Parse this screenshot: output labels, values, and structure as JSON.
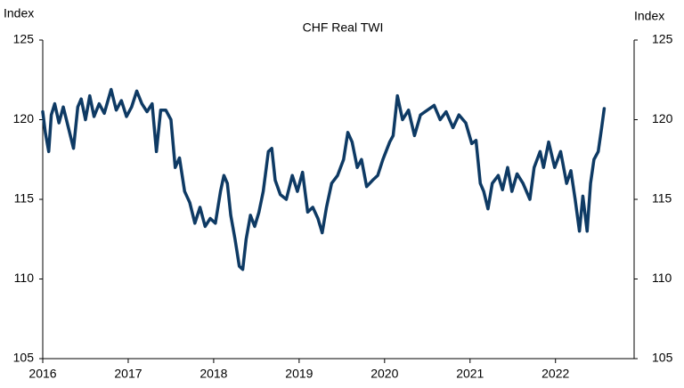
{
  "chart_data": {
    "type": "line",
    "title": "CHF Real TWI",
    "ylabel": "Index",
    "y2label": "Index",
    "color": "#0e3a64",
    "x": [
      2016.0,
      2016.03,
      2016.07,
      2016.1,
      2016.14,
      2016.19,
      2016.24,
      2016.3,
      2016.36,
      2016.41,
      2016.45,
      2016.5,
      2016.55,
      2016.6,
      2016.66,
      2016.72,
      2016.8,
      2016.86,
      2016.92,
      2016.98,
      2017.04,
      2017.1,
      2017.16,
      2017.22,
      2017.28,
      2017.33,
      2017.38,
      2017.44,
      2017.5,
      2017.55,
      2017.6,
      2017.66,
      2017.72,
      2017.78,
      2017.84,
      2017.9,
      2017.96,
      2018.02,
      2018.08,
      2018.12,
      2018.16,
      2018.2,
      2018.25,
      2018.3,
      2018.34,
      2018.38,
      2018.43,
      2018.48,
      2018.53,
      2018.58,
      2018.64,
      2018.68,
      2018.72,
      2018.78,
      2018.85,
      2018.92,
      2018.98,
      2019.04,
      2019.1,
      2019.16,
      2019.22,
      2019.27,
      2019.32,
      2019.38,
      2019.45,
      2019.52,
      2019.57,
      2019.62,
      2019.68,
      2019.73,
      2019.79,
      2019.86,
      2019.92,
      2019.98,
      2020.06,
      2020.1,
      2020.15,
      2020.21,
      2020.28,
      2020.35,
      2020.42,
      2020.5,
      2020.58,
      2020.65,
      2020.72,
      2020.8,
      2020.87,
      2020.95,
      2021.02,
      2021.07,
      2021.12,
      2021.16,
      2021.21,
      2021.26,
      2021.33,
      2021.38,
      2021.44,
      2021.49,
      2021.55,
      2021.62,
      2021.7,
      2021.75,
      2021.82,
      2021.86,
      2021.92,
      2021.99,
      2022.06,
      2022.13,
      2022.18,
      2022.23,
      2022.28,
      2022.32,
      2022.37,
      2022.41,
      2022.45,
      2022.5,
      2022.54,
      2022.57
    ],
    "values": [
      120.5,
      119.2,
      118.0,
      120.3,
      121.0,
      119.8,
      120.8,
      119.5,
      118.2,
      120.8,
      121.3,
      120.0,
      121.5,
      120.2,
      121.0,
      120.4,
      121.9,
      120.6,
      121.2,
      120.2,
      120.8,
      121.8,
      121.0,
      120.5,
      121.0,
      118.0,
      120.6,
      120.6,
      120.0,
      117.0,
      117.6,
      115.5,
      114.8,
      113.5,
      114.5,
      113.3,
      113.8,
      113.5,
      115.5,
      116.5,
      116.0,
      114.0,
      112.5,
      110.8,
      110.6,
      112.5,
      114.0,
      113.3,
      114.2,
      115.5,
      118.0,
      118.2,
      116.2,
      115.3,
      115.0,
      116.5,
      115.5,
      116.7,
      114.2,
      114.5,
      113.8,
      112.9,
      114.5,
      116.0,
      116.5,
      117.5,
      119.2,
      118.6,
      117.0,
      117.5,
      115.8,
      116.2,
      116.5,
      117.5,
      118.6,
      119.0,
      121.5,
      120.0,
      120.6,
      119.0,
      120.3,
      120.6,
      120.9,
      120.0,
      120.5,
      119.5,
      120.3,
      119.8,
      118.5,
      118.7,
      116.0,
      115.5,
      114.4,
      116.0,
      116.5,
      115.6,
      117.0,
      115.5,
      116.6,
      116.0,
      115.0,
      117.0,
      118.0,
      117.0,
      118.6,
      117.0,
      118.0,
      116.0,
      116.8,
      115.0,
      113.0,
      115.2,
      113.0,
      116.0,
      117.5,
      118.0,
      119.5,
      120.7
    ],
    "xlim": [
      2016,
      2022.92
    ],
    "xticks": [
      2016,
      2017,
      2018,
      2019,
      2020,
      2021,
      2022
    ],
    "ylim": [
      105,
      125
    ],
    "yticks": [
      105,
      110,
      115,
      120,
      125
    ],
    "y2lim": [
      105,
      125
    ],
    "y2ticks": [
      105,
      110,
      115,
      120,
      125
    ],
    "grid": false
  }
}
